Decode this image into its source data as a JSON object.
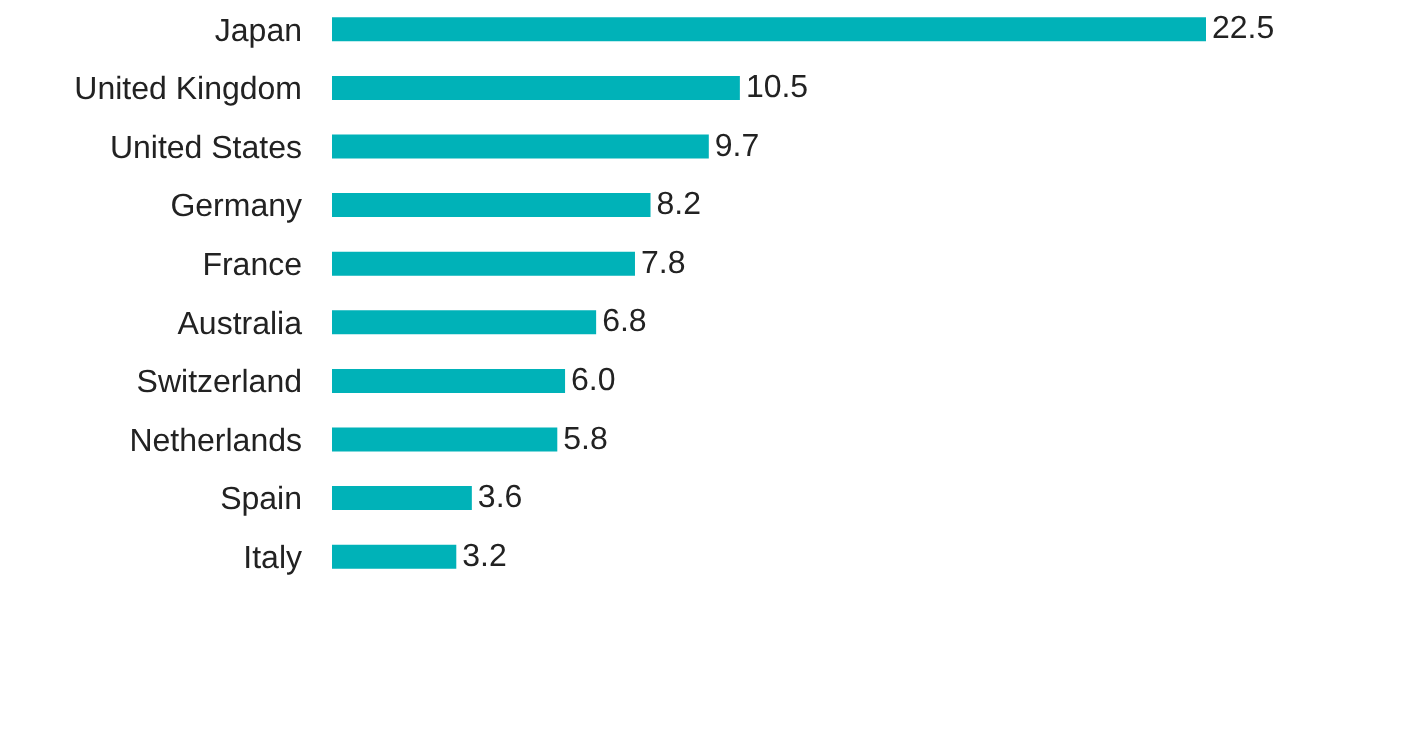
{
  "chart_data": {
    "type": "bar",
    "orientation": "horizontal",
    "categories": [
      "Japan",
      "United Kingdom",
      "United States",
      "Germany",
      "France",
      "Australia",
      "Switzerland",
      "Netherlands",
      "Spain",
      "Italy"
    ],
    "values": [
      22.5,
      10.5,
      9.7,
      8.2,
      7.8,
      6.8,
      6.0,
      5.8,
      3.6,
      3.2
    ],
    "value_labels": [
      "22.5",
      "10.5",
      "9.7",
      "8.2",
      "7.8",
      "6.8",
      "6.0",
      "5.8",
      "3.6",
      "3.2"
    ],
    "color": "#00b2b8",
    "tick_labels": "y",
    "grid": false,
    "legend": false
  }
}
